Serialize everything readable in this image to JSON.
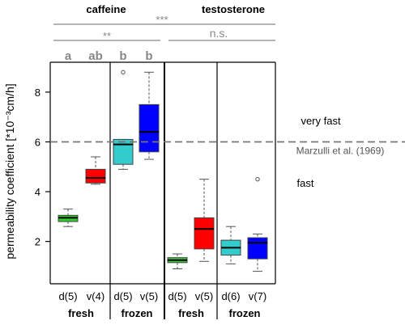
{
  "chart_data": {
    "type": "box",
    "ylabel": "permeability coefficient [*10⁻³cm/h]",
    "ylim": [
      0.3,
      9.2
    ],
    "yticks": [
      2,
      4,
      6,
      8
    ],
    "groups": [
      {
        "name": "caffeine",
        "subgroups": [
          "fresh",
          "frozen"
        ]
      },
      {
        "name": "testosterone",
        "subgroups": [
          "fresh",
          "frozen"
        ]
      }
    ],
    "comparisons": [
      {
        "label": "***",
        "between": [
          "caffeine",
          "testosterone"
        ]
      },
      {
        "label": "**",
        "between": [
          "caffeine fresh",
          "caffeine frozen"
        ]
      },
      {
        "label": "n.s.",
        "between": [
          "testosterone fresh",
          "testosterone frozen"
        ]
      }
    ],
    "letters": [
      "a",
      "ab",
      "b",
      "b"
    ],
    "reference_line": {
      "y": 6.0,
      "label": "Marzulli et al. (1969)"
    },
    "regions": [
      {
        "label": "very fast"
      },
      {
        "label": "fast"
      }
    ],
    "boxes": [
      {
        "label": "d(5)",
        "group": "caffeine",
        "state": "fresh",
        "color": "#33cc33",
        "whisker_low": 2.6,
        "q1": 2.8,
        "median": 2.95,
        "q3": 3.05,
        "whisker_high": 3.3,
        "outliers": []
      },
      {
        "label": "v(4)",
        "group": "caffeine",
        "state": "fresh",
        "color": "#ff0000",
        "whisker_low": 4.3,
        "q1": 4.35,
        "median": 4.55,
        "q3": 4.9,
        "whisker_high": 5.4,
        "outliers": []
      },
      {
        "label": "d(5)",
        "group": "caffeine",
        "state": "frozen",
        "color": "#33cccc",
        "whisker_low": 4.9,
        "q1": 5.1,
        "median": 5.9,
        "q3": 6.1,
        "whisker_high": 6.1,
        "outliers": [
          8.8
        ]
      },
      {
        "label": "v(5)",
        "group": "caffeine",
        "state": "frozen",
        "color": "#0000ff",
        "whisker_low": 5.3,
        "q1": 5.6,
        "median": 6.4,
        "q3": 7.5,
        "whisker_high": 8.8,
        "outliers": []
      },
      {
        "label": "d(5)",
        "group": "testosterone",
        "state": "fresh",
        "color": "#33cc33",
        "whisker_low": 0.9,
        "q1": 1.15,
        "median": 1.25,
        "q3": 1.35,
        "whisker_high": 1.5,
        "outliers": []
      },
      {
        "label": "v(5)",
        "group": "testosterone",
        "state": "fresh",
        "color": "#ff0000",
        "whisker_low": 1.2,
        "q1": 1.7,
        "median": 2.5,
        "q3": 2.95,
        "whisker_high": 4.5,
        "outliers": []
      },
      {
        "label": "d(6)",
        "group": "testosterone",
        "state": "frozen",
        "color": "#33cccc",
        "whisker_low": 1.1,
        "q1": 1.45,
        "median": 1.75,
        "q3": 2.05,
        "whisker_high": 2.6,
        "outliers": []
      },
      {
        "label": "v(7)",
        "group": "testosterone",
        "state": "frozen",
        "color": "#0000ff",
        "whisker_low": 0.8,
        "q1": 1.3,
        "median": 1.95,
        "q3": 2.15,
        "whisker_high": 2.3,
        "outliers": [
          4.5
        ]
      }
    ]
  }
}
